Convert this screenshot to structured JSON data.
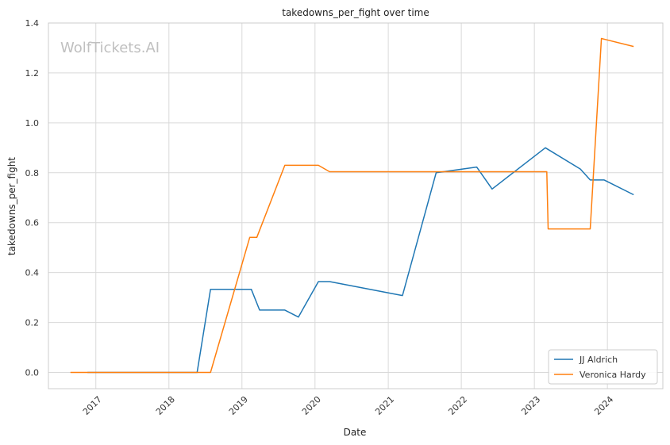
{
  "chart_data": {
    "type": "line",
    "title": "takedowns_per_fight over time",
    "xlabel": "Date",
    "ylabel": "takedowns_per_fight",
    "watermark": "WolfTickets.AI",
    "xlim": [
      "2016-05-09",
      "2024-10-04"
    ],
    "ylim": [
      -0.065,
      1.4
    ],
    "x_ticks": [
      "2017-01-01",
      "2018-01-01",
      "2019-01-01",
      "2020-01-01",
      "2021-01-01",
      "2022-01-01",
      "2023-01-01",
      "2024-01-01"
    ],
    "x_tick_labels": [
      "2017",
      "2018",
      "2019",
      "2020",
      "2021",
      "2022",
      "2023",
      "2024"
    ],
    "y_ticks": [
      0.0,
      0.2,
      0.4,
      0.6,
      0.8,
      1.0,
      1.2,
      1.4
    ],
    "y_tick_labels": [
      "0.0",
      "0.2",
      "0.4",
      "0.6",
      "0.8",
      "1.0",
      "1.2",
      "1.4"
    ],
    "grid": true,
    "legend_position": "bottom-right",
    "series": [
      {
        "name": "JJ Aldrich",
        "color": "#1f77b4",
        "points": [
          [
            "2016-11-20",
            0.0
          ],
          [
            "2018-05-22",
            0.0
          ],
          [
            "2018-07-28",
            0.333
          ],
          [
            "2019-02-17",
            0.333
          ],
          [
            "2019-03-30",
            0.25
          ],
          [
            "2019-08-03",
            0.25
          ],
          [
            "2019-10-10",
            0.222
          ],
          [
            "2020-01-18",
            0.364
          ],
          [
            "2020-03-14",
            0.364
          ],
          [
            "2021-03-13",
            0.308
          ],
          [
            "2021-08-28",
            0.8
          ],
          [
            "2022-03-19",
            0.823
          ],
          [
            "2022-06-04",
            0.735
          ],
          [
            "2023-02-25",
            0.9
          ],
          [
            "2023-08-19",
            0.815
          ],
          [
            "2023-10-07",
            0.771
          ],
          [
            "2023-12-16",
            0.771
          ],
          [
            "2024-05-11",
            0.712
          ]
        ]
      },
      {
        "name": "Veronica Hardy",
        "color": "#ff7f0e",
        "points": [
          [
            "2016-08-27",
            0.0
          ],
          [
            "2018-07-28",
            0.0
          ],
          [
            "2019-02-09",
            0.541
          ],
          [
            "2019-03-16",
            0.541
          ],
          [
            "2019-08-03",
            0.83
          ],
          [
            "2020-01-18",
            0.83
          ],
          [
            "2020-03-14",
            0.804
          ],
          [
            "2023-03-04",
            0.804
          ],
          [
            "2023-03-11",
            0.575
          ],
          [
            "2023-10-07",
            0.575
          ],
          [
            "2023-12-02",
            1.338
          ],
          [
            "2024-05-11",
            1.306
          ]
        ]
      }
    ]
  }
}
